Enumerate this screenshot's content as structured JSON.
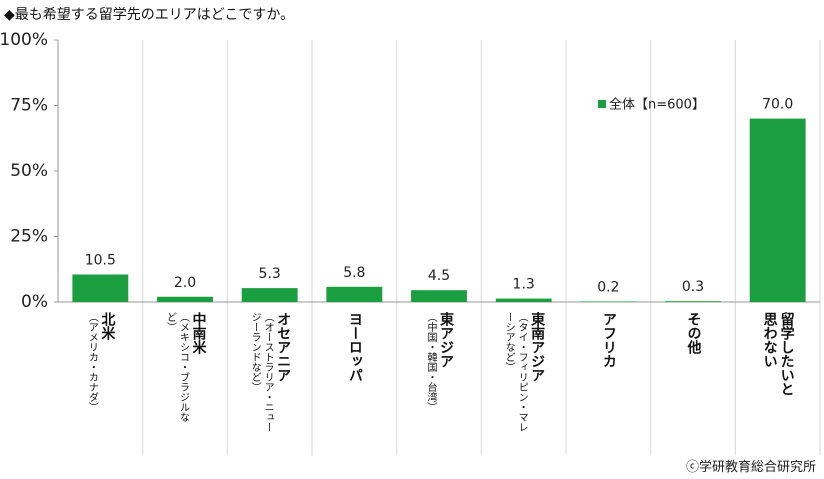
{
  "chart_data": {
    "type": "bar",
    "title": "◆最も希望する留学先のエリアはどこですか。",
    "categories": [
      "北米",
      "中南米",
      "オセアニア",
      "ヨーロッパ",
      "東アジア",
      "東南アジア",
      "アフリカ",
      "その他",
      "留学したいと思わない"
    ],
    "category_notes": [
      "（アメリカ・カナダ）",
      "（メキシコ・ブラジルなど）",
      "（オーストラリア・ニュージーランドなど）",
      null,
      "（中国・韓国・台湾）",
      "（タイ・フィリピン・マレーシアなど）",
      null,
      null,
      null
    ],
    "series": [
      {
        "name": "全体【n=600】",
        "color": "#1a9e3f",
        "values": [
          10.5,
          2.0,
          5.3,
          5.8,
          4.5,
          1.3,
          0.2,
          0.3,
          70.0
        ],
        "value_labels": [
          "10.5",
          "2.0",
          "5.3",
          "5.8",
          "4.5",
          "1.3",
          "0.2",
          "0.3",
          "70.0"
        ]
      }
    ],
    "ylim": [
      0,
      100
    ],
    "yticks": [
      {
        "value": 0,
        "label": "0%"
      },
      {
        "value": 25,
        "label": "25%"
      },
      {
        "value": 50,
        "label": "50%"
      },
      {
        "value": 75,
        "label": "75%"
      },
      {
        "value": 100,
        "label": "100%"
      }
    ],
    "source": "ⓒ学研教育総合研究所"
  }
}
